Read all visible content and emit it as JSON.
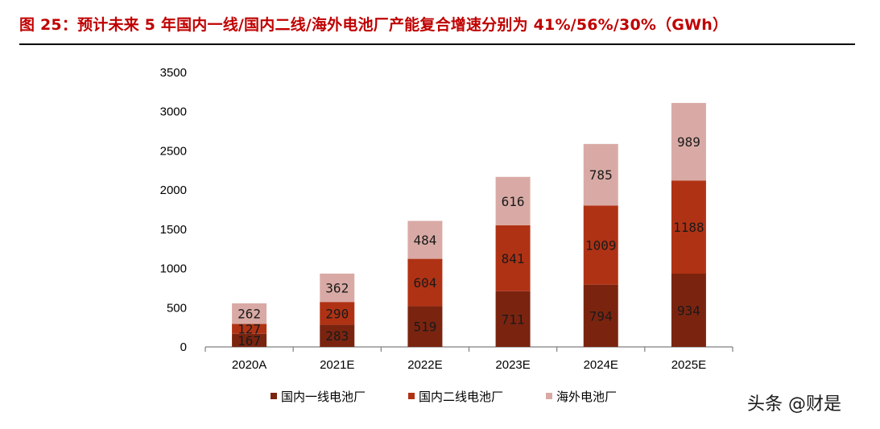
{
  "title": "图 25：预计未来 5 年国内一线/国内二线/海外电池厂产能复合增速分别为 41%/56%/30%（GWh）",
  "watermark": "头条 @财是",
  "colors": {
    "tier1": "#7a2410",
    "tier2": "#b03214",
    "overseas": "#d9aaa5",
    "title": "#c00000"
  },
  "chart_data": {
    "type": "bar",
    "stacked": true,
    "categories": [
      "2020A",
      "2021E",
      "2022E",
      "2023E",
      "2024E",
      "2025E"
    ],
    "series": [
      {
        "name": "国内一线电池厂",
        "values": [
          167,
          283,
          519,
          711,
          794,
          934
        ]
      },
      {
        "name": "国内二线电池厂",
        "values": [
          127,
          290,
          604,
          841,
          1009,
          1188
        ]
      },
      {
        "name": "海外电池厂",
        "values": [
          262,
          362,
          484,
          616,
          785,
          989
        ]
      }
    ],
    "yticks": [
      0,
      500,
      1000,
      1500,
      2000,
      2500,
      3000,
      3500
    ],
    "ylim": [
      0,
      3500
    ],
    "grid": false,
    "legend": "bottom"
  }
}
